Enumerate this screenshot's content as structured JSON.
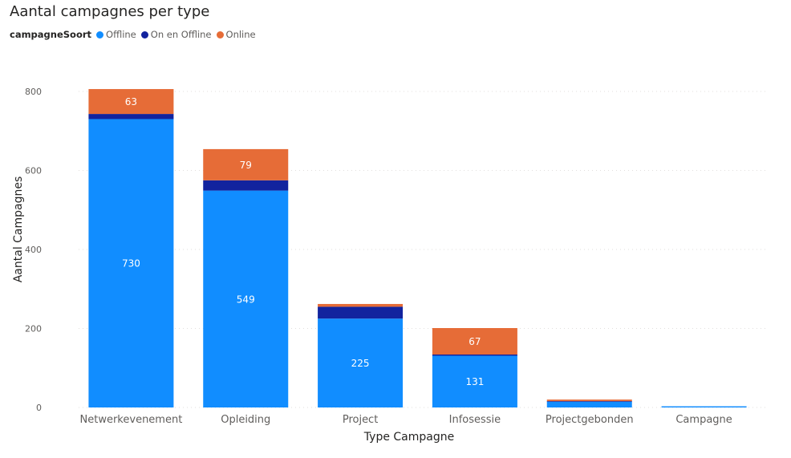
{
  "chart_data": {
    "type": "bar",
    "stacked": true,
    "title": "Aantal campagnes per type",
    "xlabel": "Type Campagne",
    "ylabel": "Aantal Campagnes",
    "ylim": [
      0,
      800
    ],
    "yticks": [
      0,
      200,
      400,
      600,
      800
    ],
    "grid": true,
    "legend_title": "campagneSoort",
    "legend_placement": "top-left",
    "categories": [
      "Netwerkevenement",
      "Opleiding",
      "Project",
      "Infosessie",
      "Projectgebonden",
      "Campagne"
    ],
    "series": [
      {
        "name": "Offline",
        "color": "#118dff",
        "values": [
          730,
          549,
          225,
          131,
          15,
          3
        ],
        "labels": [
          "730",
          "549",
          "225",
          "131",
          "",
          ""
        ]
      },
      {
        "name": "On en Offline",
        "color": "#12239e",
        "values": [
          13,
          26,
          30,
          3,
          1,
          0
        ],
        "labels": [
          "",
          "",
          "",
          "",
          "",
          ""
        ]
      },
      {
        "name": "Online",
        "color": "#e66c37",
        "values": [
          63,
          79,
          7,
          67,
          4,
          0
        ],
        "labels": [
          "63",
          "79",
          "",
          "67",
          "",
          ""
        ]
      }
    ]
  }
}
